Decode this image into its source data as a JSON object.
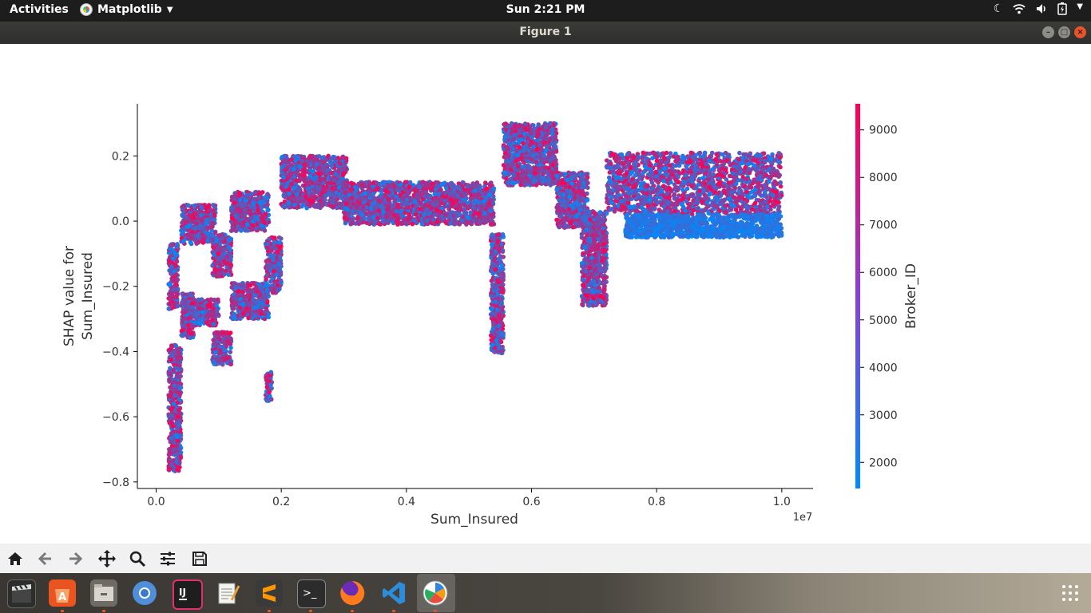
{
  "topbar": {
    "activities_label": "Activities",
    "app_menu_label": "Matplotlib",
    "clock": "Sun  2:21 PM"
  },
  "window": {
    "title": "Figure 1"
  },
  "toolbar": {
    "buttons": [
      "home",
      "back",
      "forward",
      "pan",
      "zoom",
      "configure-subplots",
      "save"
    ]
  },
  "taskbar": {
    "apps": [
      "clapperboard",
      "software-center",
      "files",
      "chromium",
      "intellij",
      "text-editor",
      "sublime-text",
      "terminal",
      "firefox",
      "vscode",
      "matplotlib"
    ]
  },
  "chart_data": {
    "type": "scatter",
    "xlabel": "Sum_Insured",
    "x_offset_label": "1e7",
    "ylabel_lines": [
      "SHAP value for",
      "Sum_Insured"
    ],
    "xlim": [
      -0.03,
      1.05
    ],
    "ylim": [
      -0.82,
      0.36
    ],
    "xticks": [
      0.0,
      0.2,
      0.4,
      0.6,
      0.8,
      1.0
    ],
    "xtick_labels": [
      "0.0",
      "0.2",
      "0.4",
      "0.6",
      "0.8",
      "1.0"
    ],
    "yticks": [
      -0.8,
      -0.6,
      -0.4,
      -0.2,
      0.0,
      0.2
    ],
    "ytick_labels": [
      "−0.8",
      "−0.6",
      "−0.4",
      "−0.2",
      "0.0",
      "0.2"
    ],
    "colorbar": {
      "label": "Broker_ID",
      "range": [
        1450,
        9550
      ],
      "ticks": [
        2000,
        3000,
        4000,
        5000,
        6000,
        7000,
        8000,
        9000
      ],
      "tick_labels": [
        "2000",
        "3000",
        "4000",
        "5000",
        "6000",
        "7000",
        "8000",
        "9000"
      ],
      "color_low": "#008afb",
      "color_high": "#ff0052"
    },
    "point_clusters": [
      {
        "x": [
          0.02,
          0.035
        ],
        "y": [
          -0.27,
          -0.07
        ],
        "color_values": [
          1500,
          9500
        ]
      },
      {
        "x": [
          0.02,
          0.04
        ],
        "y": [
          -0.77,
          -0.38
        ],
        "color_values": [
          1500,
          9500
        ]
      },
      {
        "x": [
          0.04,
          0.06
        ],
        "y": [
          -0.36,
          -0.22
        ],
        "color_values": [
          1500,
          9500
        ]
      },
      {
        "x": [
          0.04,
          0.095
        ],
        "y": [
          -0.07,
          0.05
        ],
        "color_values": [
          1500,
          9500
        ]
      },
      {
        "x": [
          0.045,
          0.1
        ],
        "y": [
          -0.32,
          -0.24
        ],
        "color_values": [
          1500,
          9500
        ]
      },
      {
        "x": [
          0.09,
          0.12
        ],
        "y": [
          -0.44,
          -0.34
        ],
        "color_values": [
          1500,
          9500
        ]
      },
      {
        "x": [
          0.09,
          0.12
        ],
        "y": [
          -0.17,
          -0.04
        ],
        "color_values": [
          1500,
          9500
        ]
      },
      {
        "x": [
          0.12,
          0.18
        ],
        "y": [
          -0.03,
          0.09
        ],
        "color_values": [
          1500,
          9500
        ]
      },
      {
        "x": [
          0.12,
          0.18
        ],
        "y": [
          -0.3,
          -0.19
        ],
        "color_values": [
          1500,
          9500
        ]
      },
      {
        "x": [
          0.175,
          0.2
        ],
        "y": [
          -0.22,
          -0.05
        ],
        "color_values": [
          1500,
          9500
        ]
      },
      {
        "x": [
          0.175,
          0.185
        ],
        "y": [
          -0.56,
          -0.46
        ],
        "color_values": [
          1500,
          9500
        ]
      },
      {
        "x": [
          0.2,
          0.305
        ],
        "y": [
          0.04,
          0.2
        ],
        "color_values": [
          1500,
          9500
        ]
      },
      {
        "x": [
          0.3,
          0.54
        ],
        "y": [
          -0.01,
          0.12
        ],
        "color_values": [
          1500,
          9500
        ]
      },
      {
        "x": [
          0.535,
          0.555
        ],
        "y": [
          -0.41,
          -0.04
        ],
        "color_values": [
          1500,
          9500
        ]
      },
      {
        "x": [
          0.555,
          0.64
        ],
        "y": [
          0.11,
          0.3
        ],
        "color_values": [
          1500,
          9500
        ]
      },
      {
        "x": [
          0.64,
          0.69
        ],
        "y": [
          -0.02,
          0.15
        ],
        "color_values": [
          1500,
          9500
        ]
      },
      {
        "x": [
          0.68,
          0.72
        ],
        "y": [
          -0.26,
          0.03
        ],
        "color_values": [
          1500,
          9500
        ]
      },
      {
        "x": [
          0.72,
          1.0
        ],
        "y": [
          0.02,
          0.21
        ],
        "color_values": [
          1500,
          9500
        ]
      },
      {
        "x": [
          0.75,
          1.0
        ],
        "y": [
          -0.05,
          0.02
        ],
        "color_values": [
          1500,
          3500
        ]
      }
    ]
  }
}
